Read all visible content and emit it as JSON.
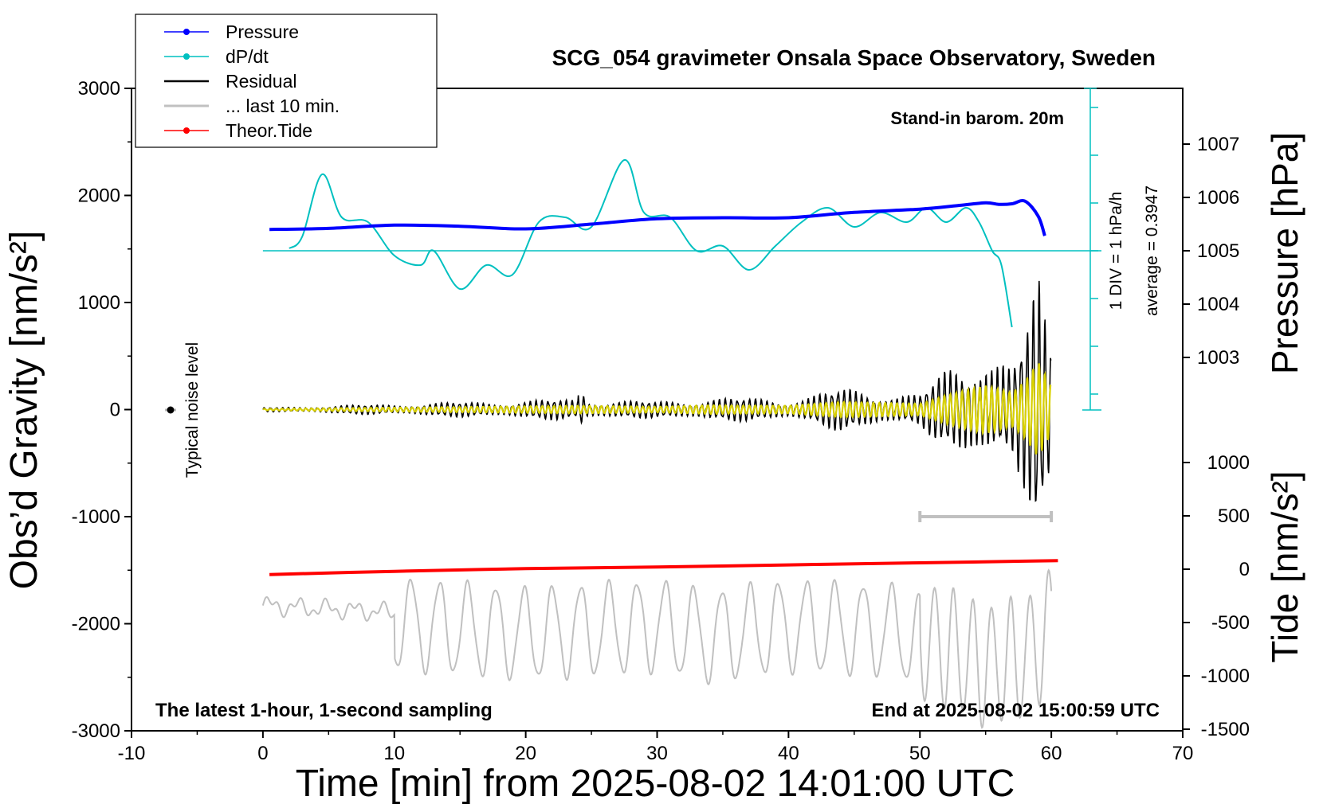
{
  "chart_data": {
    "type": "line",
    "title": "SCG_054 gravimeter Onsala Space Observatory, Sweden",
    "xlabel": "Time [min] from 2025-08-02 14:01:00 UTC",
    "ylabel_left": "Obs’d Gravity [nm/s²]",
    "ylabel_right_pressure": "Pressure [hPa]",
    "ylabel_right_tide": "Tide [nm/s²]",
    "xlim": [
      -10,
      70
    ],
    "ylim": [
      -3000,
      3000
    ],
    "x_ticks": [
      "-10",
      "0",
      "10",
      "20",
      "30",
      "40",
      "50",
      "60",
      "70"
    ],
    "y_ticks": [
      "3000",
      "2000",
      "1000",
      "0",
      "-1000",
      "-2000",
      "-3000"
    ],
    "pressure_ticks": [
      "1007",
      "1006",
      "1005",
      "1004",
      "1003"
    ],
    "tide_ticks": [
      "1000",
      "500",
      "0",
      "-500",
      "-1000",
      "-1500"
    ],
    "legend": {
      "placement": "top-left",
      "entries": [
        {
          "label": "Pressure",
          "color": "#0000ff",
          "marker": true
        },
        {
          "label": "dP/dt",
          "color": "#00c0c0",
          "marker": true
        },
        {
          "label": "Residual",
          "color": "#000000",
          "marker": false
        },
        {
          "label": "... last 10 min.",
          "color": "#c0c0c0",
          "marker": false
        },
        {
          "label": "Theor.Tide",
          "color": "#ff0000",
          "marker": true
        }
      ]
    },
    "annotations": {
      "barometer": "Stand-in barom. 20m",
      "dpdt_scale": "1 DIV = 1 hPa/h",
      "dpdt_average": "average = 0.3947",
      "noise_label": "Typical noise level",
      "bottom_left": "The latest 1-hour, 1-second sampling",
      "bottom_right": "End at 2025-08-02 15:00:59 UTC"
    },
    "series": [
      {
        "name": "Pressure",
        "axis": "pressure_hPa",
        "color": "#0000ff",
        "x": [
          0.5,
          5,
          10,
          15,
          20,
          25,
          30,
          35,
          40,
          45,
          50,
          53,
          55,
          56,
          57,
          58,
          59,
          59.5
        ],
        "y": [
          1005.4,
          1005.42,
          1005.48,
          1005.46,
          1005.41,
          1005.5,
          1005.6,
          1005.62,
          1005.62,
          1005.72,
          1005.78,
          1005.85,
          1005.9,
          1005.87,
          1005.88,
          1005.93,
          1005.65,
          1005.28
        ]
      },
      {
        "name": "dP/dt",
        "axis": "dpdt_div",
        "color": "#00c0c0",
        "x": [
          2,
          3,
          4.5,
          6,
          8,
          10,
          12,
          13,
          15,
          17,
          19,
          21,
          23,
          25,
          27.5,
          29,
          31,
          33,
          35,
          37,
          39,
          41,
          43,
          45,
          47,
          49,
          50.5,
          52,
          53.5,
          54.5,
          55.5,
          56.2,
          57
        ],
        "y": [
          0.05,
          0.3,
          1.6,
          0.7,
          0.6,
          -0.1,
          -0.3,
          0.0,
          -0.8,
          -0.3,
          -0.5,
          0.6,
          0.7,
          0.5,
          1.9,
          0.8,
          0.7,
          0.0,
          0.1,
          -0.4,
          0.1,
          0.6,
          0.9,
          0.5,
          0.8,
          0.6,
          0.9,
          0.6,
          0.9,
          0.6,
          0.0,
          -0.3,
          -1.6
        ]
      },
      {
        "name": "Residual",
        "axis": "gravity_nm_s2",
        "color": "#000000",
        "x": [
          0,
          24,
          30,
          34,
          40,
          44,
          50,
          52,
          55,
          57,
          58,
          59,
          60
        ],
        "amplitude": [
          15,
          80,
          60,
          90,
          80,
          160,
          120,
          300,
          500,
          350,
          600,
          1000,
          500
        ]
      },
      {
        "name": "... last 10 min.",
        "axis": "tide_nm_s2",
        "color": "#c0c0c0",
        "x": [
          0,
          10,
          20,
          30,
          34,
          40,
          48,
          52,
          55,
          58,
          60
        ],
        "y": [
          -320,
          -450,
          -650,
          -500,
          -700,
          -500,
          -600,
          -900,
          -1250,
          -1100,
          -550
        ]
      },
      {
        "name": "Theor.Tide",
        "axis": "tide_nm_s2",
        "color": "#ff0000",
        "x": [
          0.5,
          10,
          20,
          30,
          40,
          50,
          60.5
        ],
        "y": [
          -50,
          -20,
          5,
          20,
          40,
          60,
          80
        ]
      }
    ]
  }
}
